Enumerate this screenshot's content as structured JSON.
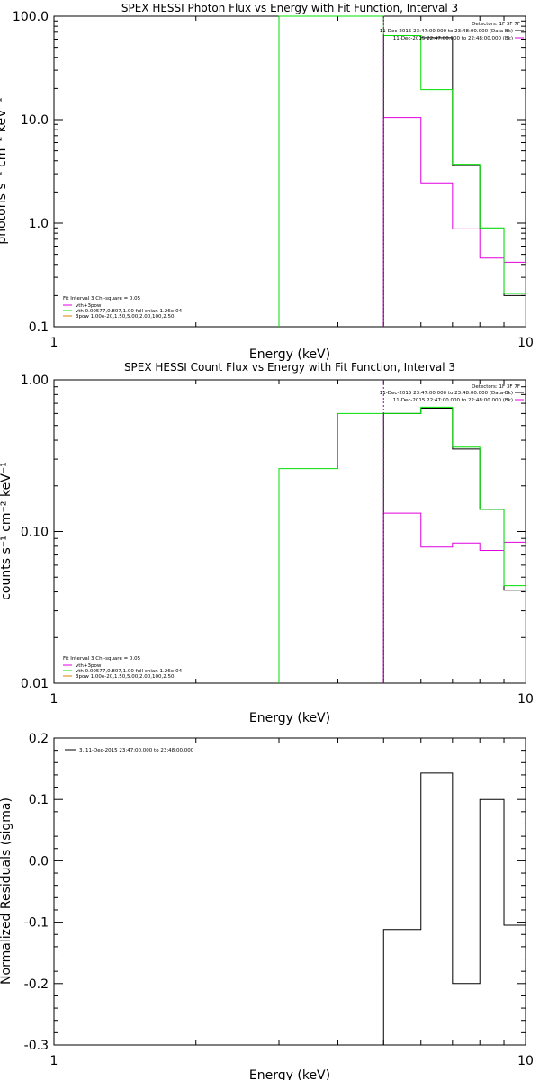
{
  "colors": {
    "black": "#000000",
    "green": "#00e000",
    "magenta": "#e000e0",
    "purple": "#a000a0"
  },
  "chart_data": [
    {
      "type": "line",
      "title": "SPEX HESSI Photon Flux vs Energy with Fit Function, Interval 3",
      "xlabel": "Energy (keV)",
      "ylabel": "photons s⁻¹ cm⁻² keV⁻¹",
      "xscale": "log",
      "yscale": "log",
      "xlim": [
        1,
        10
      ],
      "ylim": [
        0.1,
        100
      ],
      "xticks": [
        "1",
        "10"
      ],
      "yticks": [
        "0.1",
        "1.0",
        "10.0",
        "100.0"
      ],
      "info_lines": [
        "Detectors: 1F 3F 7F",
        "11-Dec-2015 23:47:00.000 to 23:48:00.000 (Data-Bk)",
        "11-Dec-2015 22:47:00.000 to 22:48:00.000 (Bk)"
      ],
      "legend": [
        "Fit Interval 3   Chi-square = 0.05",
        "vth+3pow",
        "vth 0.00577,0.807,1.00  full chian 1.26e-04",
        "3pow 1.00e-20,1.50,5.00,2.00,100,2.50"
      ],
      "series": [
        {
          "name": "Data-Bk",
          "color": "black",
          "edges": [
            5,
            6,
            7,
            8,
            9,
            10
          ],
          "values": [
            65,
            62,
            3.6,
            0.88,
            0.2
          ]
        },
        {
          "name": "Bk",
          "color": "magenta",
          "edges": [
            5,
            6,
            7,
            8,
            9,
            10
          ],
          "values": [
            10.5,
            2.45,
            0.88,
            0.46,
            0.42
          ]
        },
        {
          "name": "vth+3pow",
          "color": "green",
          "edges": [
            3,
            4,
            5,
            6,
            7,
            8,
            9,
            10
          ],
          "values": [
            100,
            100,
            65,
            19.5,
            3.7,
            0.9,
            0.21
          ]
        }
      ]
    },
    {
      "type": "line",
      "title": "SPEX HESSI Count Flux vs Energy with Fit Function, Interval 3",
      "xlabel": "Energy (keV)",
      "ylabel": "counts s⁻¹ cm⁻² keV⁻¹",
      "xscale": "log",
      "yscale": "log",
      "xlim": [
        1,
        10
      ],
      "ylim": [
        0.01,
        1
      ],
      "xticks": [
        "1",
        "10"
      ],
      "yticks": [
        "0.01",
        "0.10",
        "1.00"
      ],
      "info_lines": [
        "Detectors: 1F 3F 7F",
        "11-Dec-2015 23:47:00.000 to 23:48:00.000 (Data-Bk)",
        "11-Dec-2015 22:47:00.000 to 22:48:00.000 (Bk)"
      ],
      "legend": [
        "Fit Interval 3   Chi-square = 0.05",
        "vth+3pow",
        "vth 0.00577,0.807,1.00  full chian 1.26e-04",
        "3pow 1.00e-20,1.50,5.00,2.00,100,2.50"
      ],
      "series": [
        {
          "name": "Data-Bk",
          "color": "black",
          "edges": [
            5,
            6,
            7,
            8,
            9,
            10
          ],
          "values": [
            0.6,
            0.65,
            0.35,
            0.14,
            0.041
          ]
        },
        {
          "name": "Bk",
          "color": "magenta",
          "edges": [
            5,
            6,
            7,
            8,
            9,
            10
          ],
          "values": [
            0.132,
            0.079,
            0.084,
            0.075,
            0.085
          ]
        },
        {
          "name": "vth+3pow",
          "color": "green",
          "edges": [
            3,
            4,
            5,
            6,
            7,
            8,
            9,
            10
          ],
          "values": [
            0.26,
            0.6,
            0.6,
            0.66,
            0.36,
            0.14,
            0.044
          ]
        }
      ]
    },
    {
      "type": "line",
      "title": "",
      "xlabel": "Energy (keV)",
      "ylabel": "Normalized Residuals (sigma)",
      "xscale": "log",
      "yscale": "linear",
      "xlim": [
        1,
        10
      ],
      "ylim": [
        -0.3,
        0.2
      ],
      "xticks": [
        "1",
        "10"
      ],
      "yticks": [
        "-0.3",
        "-0.2",
        "-0.1",
        "0.0",
        "0.1",
        "0.2"
      ],
      "legend": [
        "3, 11-Dec-2015 23:47:00.000 to 23:48:00.000"
      ],
      "series": [
        {
          "name": "3, 11-Dec-2015 23:47:00.000 to 23:48:00.000",
          "color": "black",
          "edges": [
            5,
            6,
            7,
            8,
            9,
            10
          ],
          "values": [
            -0.112,
            0.143,
            -0.2,
            0.1,
            -0.105
          ]
        }
      ]
    }
  ]
}
